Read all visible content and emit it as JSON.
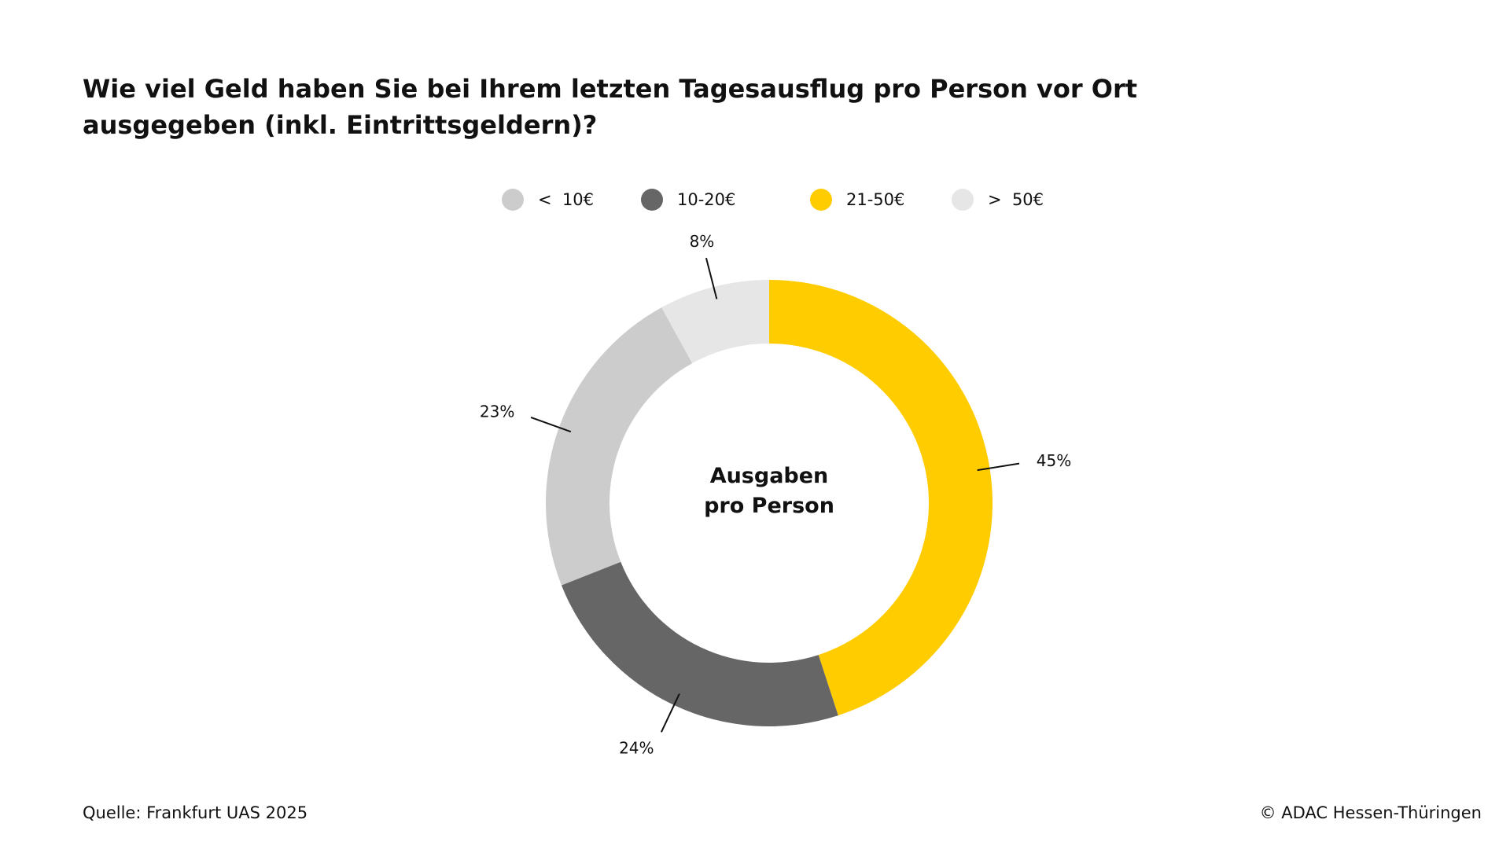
{
  "title_lines": [
    "Wie viel Geld haben Sie bei Ihrem letzten Tagesausflug pro Person vor Ort",
    "ausgegeben (inkl. Eintrittsgeldern)?"
  ],
  "source": "Quelle: Frankfurt UAS 2025",
  "copyright": "© ADAC Hessen-Thüringen",
  "chart_data": {
    "type": "pie",
    "variant": "donut",
    "center_label_lines": [
      "Ausgaben",
      "pro Person"
    ],
    "legend_placement": "top",
    "legend": [
      {
        "label": "<  10€",
        "color": "#cccccc"
      },
      {
        "label": "10-20€",
        "color": "#666666"
      },
      {
        "label": "21-50€",
        "color": "#ffcc00"
      },
      {
        "label": ">  50€",
        "color": "#e6e6e6"
      }
    ],
    "slices": [
      {
        "category": "21-50€",
        "value": 45,
        "label": "45%",
        "color": "#ffcc00"
      },
      {
        "category": "10-20€",
        "value": 24,
        "label": "24%",
        "color": "#666666"
      },
      {
        "category": "<  10€",
        "value": 23,
        "label": "23%",
        "color": "#cccccc"
      },
      {
        "category": ">  50€",
        "value": 8,
        "label": "8%",
        "color": "#e6e6e6"
      }
    ]
  }
}
